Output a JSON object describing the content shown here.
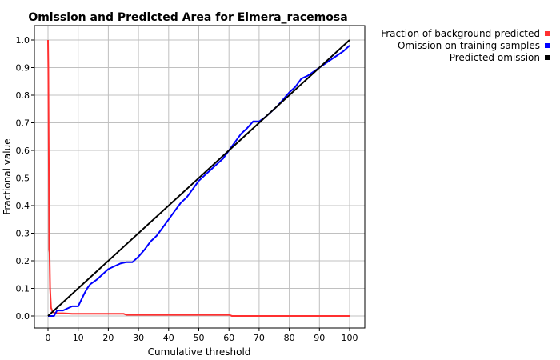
{
  "chart_data": {
    "type": "line",
    "title": "Omission and Predicted Area for Elmera_racemosa",
    "xlabel": "Cumulative threshold",
    "ylabel": "Fractional value",
    "xlim": [
      0,
      100
    ],
    "ylim": [
      0,
      1.0
    ],
    "xticks": [
      0,
      10,
      20,
      30,
      40,
      50,
      60,
      70,
      80,
      90,
      100
    ],
    "yticks": [
      0.0,
      0.1,
      0.2,
      0.3,
      0.4,
      0.5,
      0.6,
      0.7,
      0.8,
      0.9,
      1.0
    ],
    "ytick_labels": [
      "0.0",
      "0.1",
      "0.2",
      "0.3",
      "0.4",
      "0.5",
      "0.6",
      "0.7",
      "0.8",
      "0.9",
      "1.0"
    ],
    "grid": true,
    "legend_position": "top-right-outside",
    "series": [
      {
        "name": "Fraction of background predicted",
        "color": "#ff3030",
        "x": [
          0,
          0.1,
          0.2,
          0.3,
          0.4,
          0.5,
          0.7,
          1,
          1.5,
          2,
          3,
          5,
          8,
          10,
          15,
          20,
          25,
          26,
          30,
          40,
          50,
          55,
          60,
          61,
          70,
          80,
          90,
          100
        ],
        "y": [
          1.0,
          0.9,
          0.66,
          0.5,
          0.24,
          0.23,
          0.1,
          0.03,
          0.015,
          0.012,
          0.01,
          0.01,
          0.008,
          0.008,
          0.008,
          0.008,
          0.008,
          0.004,
          0.004,
          0.004,
          0.004,
          0.004,
          0.004,
          0.0,
          0.0,
          0.0,
          0.0,
          0.0
        ]
      },
      {
        "name": "Omission on training samples",
        "color": "#0000ff",
        "x": [
          0,
          2,
          3,
          5,
          8,
          10,
          12,
          13,
          14,
          16,
          18,
          20,
          22,
          24,
          26,
          28,
          30,
          32,
          34,
          36,
          38,
          40,
          42,
          44,
          46,
          48,
          50,
          52,
          54,
          56,
          58,
          60,
          62,
          64,
          66,
          68,
          70,
          72,
          74,
          76,
          78,
          80,
          82,
          84,
          86,
          88,
          90,
          92,
          94,
          96,
          98,
          100
        ],
        "y": [
          0.0,
          0.0,
          0.02,
          0.02,
          0.035,
          0.035,
          0.08,
          0.1,
          0.115,
          0.13,
          0.15,
          0.17,
          0.18,
          0.19,
          0.195,
          0.195,
          0.215,
          0.24,
          0.27,
          0.29,
          0.32,
          0.35,
          0.38,
          0.41,
          0.43,
          0.46,
          0.49,
          0.51,
          0.53,
          0.55,
          0.57,
          0.6,
          0.63,
          0.66,
          0.68,
          0.705,
          0.705,
          0.72,
          0.74,
          0.76,
          0.785,
          0.81,
          0.83,
          0.86,
          0.87,
          0.885,
          0.9,
          0.915,
          0.93,
          0.945,
          0.96,
          0.98
        ]
      },
      {
        "name": "Predicted omission",
        "color": "#000000",
        "x": [
          0,
          100
        ],
        "y": [
          0,
          1.0
        ]
      }
    ]
  }
}
